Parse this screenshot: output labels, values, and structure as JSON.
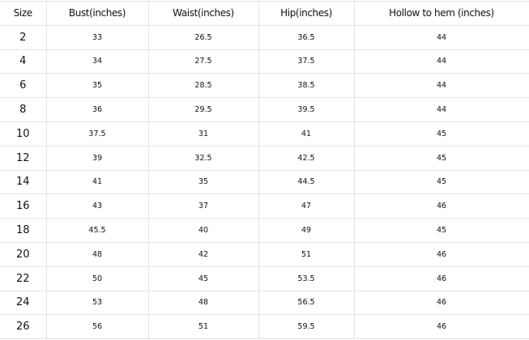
{
  "headers": [
    "Size",
    "Bust(inches)",
    "Waist(inches)",
    "Hip(inches)",
    "Hollow to hem (inches)"
  ],
  "rows": [
    [
      "2",
      "33",
      "26.5",
      "36.5",
      "44"
    ],
    [
      "4",
      "34",
      "27.5",
      "37.5",
      "44"
    ],
    [
      "6",
      "35",
      "28.5",
      "38.5",
      "44"
    ],
    [
      "8",
      "36",
      "29.5",
      "39.5",
      "44"
    ],
    [
      "10",
      "37.5",
      "31",
      "41",
      "45"
    ],
    [
      "12",
      "39",
      "32.5",
      "42.5",
      "45"
    ],
    [
      "14",
      "41",
      "35",
      "44.5",
      "45"
    ],
    [
      "16",
      "43",
      "37",
      "47",
      "46"
    ],
    [
      "18",
      "45.5",
      "40",
      "49",
      "45"
    ],
    [
      "20",
      "48",
      "42",
      "51",
      "46"
    ],
    [
      "22",
      "50",
      "45",
      "53.5",
      "46"
    ],
    [
      "24",
      "53",
      "48",
      "56.5",
      "46"
    ],
    [
      "26",
      "56",
      "51",
      "59.5",
      "46"
    ]
  ]
}
